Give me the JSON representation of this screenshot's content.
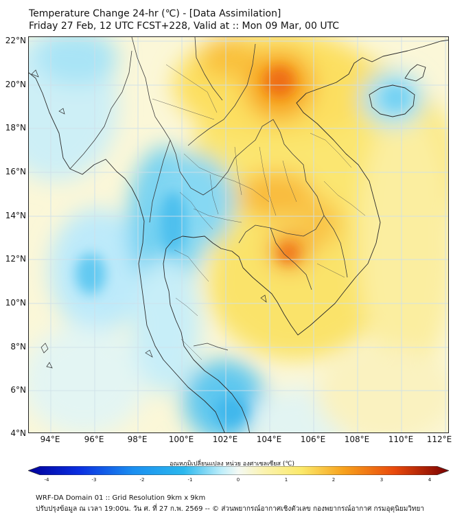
{
  "title_line1": "Temperature Change 24-hr (℃) - [Data Assimilation]",
  "title_line2": "Friday 27 Feb, 12 UTC FCST+228, Valid at :: Mon 09 Mar, 00 UTC",
  "map": {
    "lat_labels": [
      "22°N",
      "20°N",
      "18°N",
      "16°N",
      "14°N",
      "12°N",
      "10°N",
      "8°N",
      "6°N",
      "4°N"
    ],
    "lon_labels": [
      "94°E",
      "96°E",
      "98°E",
      "100°E",
      "102°E",
      "104°E",
      "106°E",
      "108°E",
      "110°E",
      "112°E"
    ],
    "colors": {
      "cold_strong": "#00009a",
      "cold": "#2bb8ee",
      "cool": "#bfeefa",
      "neutral": "#f4f9f4",
      "warm": "#fbe96a",
      "hot": "#f7a11c",
      "hot_strong": "#d62800"
    }
  },
  "colorbar": {
    "title": "อุณหภูมิเปลี่ยนแปลง หน่วย องศาเซลเซียส (℃)",
    "ticks": [
      "-4",
      "-3",
      "-2",
      "-1",
      "0",
      "1",
      "2",
      "3",
      "4"
    ],
    "range": [
      -4,
      4
    ]
  },
  "footer_line1": "WRF-DA Domain 01 :: Grid Resolution 9km x 9km",
  "footer_line2": "ปรับปรุงข้อมูล ณ เวลา 19:00น. วัน ศ. ที่ 27 ก.พ. 2569 -- © ส่วนพยากรณ์อากาศเชิงตัวเลข กองพยากรณ์อากาศ กรมอุตุนิยมวิทยา"
}
